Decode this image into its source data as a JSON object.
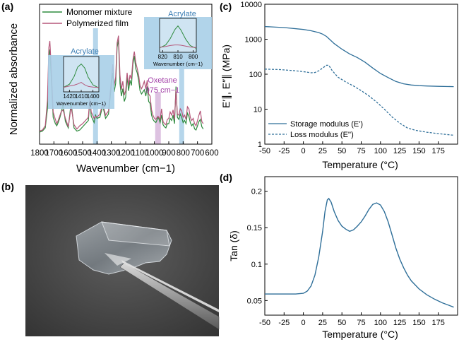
{
  "chart_data": [
    {
      "panel": "(a)",
      "type": "line",
      "xlabel": "Wavenumber (cm−1)",
      "ylabel": "Normalized absorbance",
      "xlim": [
        1800,
        600
      ],
      "x_reversed": true,
      "xticks": [
        1800,
        1700,
        1600,
        1500,
        1400,
        1300,
        1200,
        1100,
        1000,
        900,
        800,
        700,
        600
      ],
      "y_ticks_shown": false,
      "legend": "top-left",
      "series": [
        {
          "name": "Monomer mixture",
          "color": "#2e8b3e",
          "x": [
            1800,
            1780,
            1760,
            1745,
            1735,
            1728,
            1720,
            1705,
            1690,
            1680,
            1670,
            1660,
            1650,
            1636,
            1620,
            1600,
            1580,
            1560,
            1540,
            1520,
            1500,
            1480,
            1460,
            1450,
            1440,
            1420,
            1410,
            1400,
            1380,
            1360,
            1340,
            1320,
            1300,
            1290,
            1280,
            1270,
            1260,
            1250,
            1240,
            1230,
            1220,
            1210,
            1200,
            1190,
            1180,
            1170,
            1160,
            1150,
            1140,
            1130,
            1120,
            1110,
            1100,
            1090,
            1080,
            1070,
            1060,
            1050,
            1040,
            1030,
            1020,
            1010,
            1000,
            990,
            980,
            975,
            970,
            960,
            950,
            940,
            930,
            920,
            910,
            900,
            890,
            880,
            870,
            860,
            850,
            840,
            830,
            820,
            810,
            800,
            790,
            780,
            770,
            760,
            750,
            740,
            730,
            720,
            710,
            700,
            690,
            680,
            670,
            660
          ],
          "y": [
            0.06,
            0.07,
            0.1,
            0.28,
            0.78,
            0.84,
            0.62,
            0.2,
            0.14,
            0.12,
            0.15,
            0.19,
            0.24,
            0.32,
            0.16,
            0.1,
            0.34,
            0.1,
            0.07,
            0.08,
            0.11,
            0.14,
            0.17,
            0.36,
            0.21,
            0.15,
            0.22,
            0.19,
            0.2,
            0.31,
            0.19,
            0.23,
            0.5,
            0.62,
            0.44,
            0.52,
            0.86,
            0.93,
            0.52,
            0.4,
            0.47,
            0.35,
            0.39,
            0.58,
            0.45,
            0.55,
            0.5,
            0.7,
            0.78,
            0.66,
            0.62,
            0.55,
            0.45,
            0.42,
            0.44,
            0.46,
            0.4,
            0.49,
            0.35,
            0.33,
            0.22,
            0.18,
            0.16,
            0.15,
            0.18,
            0.2,
            0.19,
            0.15,
            0.22,
            0.13,
            0.11,
            0.1,
            0.14,
            0.14,
            0.19,
            0.17,
            0.22,
            0.14,
            0.49,
            0.2,
            0.18,
            0.23,
            0.2,
            0.15,
            0.17,
            0.14,
            0.24,
            0.21,
            0.15,
            0.12,
            0.14,
            0.09,
            0.08,
            0.12,
            0.16,
            0.18,
            0.11,
            0.09
          ]
        },
        {
          "name": "Polymerized film",
          "color": "#b5577a",
          "x": [
            1800,
            1780,
            1760,
            1745,
            1735,
            1728,
            1720,
            1705,
            1690,
            1680,
            1670,
            1660,
            1650,
            1636,
            1620,
            1600,
            1580,
            1560,
            1540,
            1520,
            1500,
            1480,
            1460,
            1450,
            1440,
            1420,
            1410,
            1400,
            1380,
            1360,
            1340,
            1320,
            1300,
            1290,
            1280,
            1270,
            1260,
            1250,
            1240,
            1230,
            1220,
            1210,
            1200,
            1190,
            1180,
            1170,
            1160,
            1150,
            1140,
            1130,
            1120,
            1110,
            1100,
            1090,
            1080,
            1070,
            1060,
            1050,
            1040,
            1030,
            1020,
            1010,
            1000,
            990,
            980,
            975,
            970,
            960,
            950,
            940,
            930,
            920,
            910,
            900,
            890,
            880,
            870,
            860,
            850,
            840,
            830,
            820,
            810,
            800,
            790,
            780,
            770,
            760,
            750,
            740,
            730,
            720,
            710,
            700,
            690,
            680,
            670,
            660
          ],
          "y": [
            0.07,
            0.08,
            0.12,
            0.36,
            0.86,
            0.92,
            0.7,
            0.25,
            0.18,
            0.14,
            0.17,
            0.21,
            0.25,
            0.27,
            0.19,
            0.11,
            0.3,
            0.13,
            0.09,
            0.12,
            0.14,
            0.17,
            0.2,
            0.38,
            0.25,
            0.19,
            0.21,
            0.2,
            0.23,
            0.33,
            0.22,
            0.26,
            0.55,
            0.7,
            0.5,
            0.58,
            0.9,
            0.97,
            0.6,
            0.46,
            0.54,
            0.41,
            0.45,
            0.62,
            0.5,
            0.6,
            0.56,
            0.74,
            0.82,
            0.72,
            0.66,
            0.6,
            0.5,
            0.47,
            0.5,
            0.54,
            0.47,
            0.55,
            0.42,
            0.4,
            0.27,
            0.22,
            0.19,
            0.18,
            0.2,
            0.21,
            0.2,
            0.18,
            0.28,
            0.16,
            0.14,
            0.13,
            0.18,
            0.19,
            0.25,
            0.22,
            0.27,
            0.18,
            0.46,
            0.23,
            0.22,
            0.28,
            0.26,
            0.2,
            0.22,
            0.18,
            0.3,
            0.28,
            0.2,
            0.17,
            0.19,
            0.14,
            0.12,
            0.17,
            0.22,
            0.26,
            0.16,
            0.14
          ]
        }
      ],
      "highlight_bands": [
        {
          "center": 1410,
          "color": "#a9cfe8"
        },
        {
          "center": 975,
          "color": "#d7b7dc"
        },
        {
          "center": 810,
          "color": "#a9cfe8"
        }
      ],
      "annotations": [
        {
          "text": "Acrylate",
          "color": "#3d7fb5"
        },
        {
          "text": "Acrylate",
          "color": "#3d7fb5"
        },
        {
          "text": "Oxetane",
          "color": "#a23fa7"
        },
        {
          "text": "975 cm−1",
          "color": "#a23fa7"
        }
      ],
      "insets": [
        {
          "xlabel": "Wavenumber (cm−1)",
          "xticks": [
            1420,
            1410,
            1400
          ],
          "xlim": [
            1425,
            1395
          ],
          "monomer": {
            "x": [
              1425,
              1420,
              1416,
              1413,
              1410,
              1407,
              1404,
              1400,
              1395
            ],
            "y": [
              0.1,
              0.2,
              0.45,
              0.75,
              0.85,
              0.72,
              0.42,
              0.18,
              0.08
            ]
          },
          "polymer": {
            "x": [
              1425,
              1420,
              1416,
              1413,
              1410,
              1407,
              1404,
              1400,
              1395
            ],
            "y": [
              0.1,
              0.14,
              0.17,
              0.21,
              0.26,
              0.18,
              0.13,
              0.11,
              0.1
            ]
          }
        },
        {
          "xlabel": "Wavenumber (cm−1)",
          "xticks": [
            820,
            810,
            800
          ],
          "xlim": [
            822,
            798
          ],
          "monomer": {
            "x": [
              822,
              818,
              815,
              812,
              810,
              808,
              805,
              802,
              798
            ],
            "y": [
              0.1,
              0.2,
              0.42,
              0.72,
              0.84,
              0.7,
              0.4,
              0.18,
              0.08
            ]
          },
          "polymer": {
            "x": [
              822,
              818,
              815,
              812,
              810,
              808,
              805,
              802,
              798
            ],
            "y": [
              0.12,
              0.15,
              0.18,
              0.2,
              0.2,
              0.19,
              0.16,
              0.13,
              0.11
            ]
          }
        }
      ]
    },
    {
      "panel": "(c)",
      "type": "line",
      "xlabel": "Temperature (°C)",
      "ylabel": "E′∥, E″∥ (MPa)",
      "xlim": [
        -50,
        200
      ],
      "ylim": [
        1,
        10000
      ],
      "y_scale": "log",
      "xticks": [
        -50,
        -25,
        0,
        25,
        50,
        75,
        100,
        125,
        150,
        175
      ],
      "yticks": [
        1,
        10,
        100,
        1000,
        10000
      ],
      "legend": "bottom-left",
      "series": [
        {
          "name": "Storage modulus (E')",
          "style": "solid",
          "color": "#2f6f99",
          "x": [
            -50,
            -25,
            0,
            10,
            20,
            25,
            30,
            35,
            40,
            50,
            60,
            70,
            80,
            90,
            100,
            110,
            120,
            130,
            140,
            150,
            160,
            175,
            195
          ],
          "y": [
            2300,
            2150,
            1900,
            1750,
            1550,
            1400,
            1200,
            950,
            750,
            520,
            380,
            300,
            220,
            150,
            105,
            80,
            62,
            53,
            49,
            47,
            46,
            45,
            44
          ]
        },
        {
          "name": "Loss modulus (E'')",
          "style": "dashed",
          "color": "#2f6f99",
          "x": [
            -50,
            -30,
            -10,
            0,
            10,
            15,
            20,
            25,
            30,
            33,
            37,
            45,
            55,
            65,
            75,
            85,
            95,
            105,
            115,
            125,
            135,
            145,
            160,
            175,
            195
          ],
          "y": [
            140,
            135,
            125,
            118,
            110,
            112,
            125,
            150,
            180,
            180,
            130,
            82,
            60,
            46,
            34,
            24,
            16,
            10,
            6,
            4,
            2.9,
            2.5,
            2.2,
            2.0,
            1.8
          ]
        }
      ]
    },
    {
      "panel": "(d)",
      "type": "line",
      "xlabel": "Temperature (°C)",
      "ylabel": "Tan (δ)",
      "xlim": [
        -50,
        200
      ],
      "ylim": [
        0.03,
        0.22
      ],
      "xticks": [
        -50,
        -25,
        0,
        25,
        50,
        75,
        100,
        125,
        150,
        175
      ],
      "yticks": [
        0.05,
        0.1,
        0.15,
        0.2
      ],
      "series": [
        {
          "color": "#2f6f99",
          "x": [
            -50,
            -30,
            -10,
            0,
            5,
            10,
            15,
            20,
            25,
            28,
            31,
            33,
            36,
            40,
            45,
            50,
            55,
            60,
            65,
            70,
            75,
            80,
            85,
            90,
            95,
            100,
            105,
            110,
            115,
            120,
            125,
            130,
            135,
            140,
            150,
            160,
            170,
            180,
            190,
            195
          ],
          "y": [
            0.059,
            0.059,
            0.059,
            0.06,
            0.063,
            0.07,
            0.085,
            0.11,
            0.145,
            0.172,
            0.188,
            0.19,
            0.185,
            0.172,
            0.16,
            0.152,
            0.148,
            0.145,
            0.147,
            0.152,
            0.158,
            0.166,
            0.175,
            0.182,
            0.184,
            0.181,
            0.172,
            0.158,
            0.14,
            0.122,
            0.107,
            0.095,
            0.085,
            0.077,
            0.066,
            0.058,
            0.052,
            0.047,
            0.043,
            0.041
          ]
        }
      ]
    }
  ],
  "labels": {
    "a": "(a)",
    "b": "(b)",
    "c": "(c)",
    "d": "(d)"
  }
}
